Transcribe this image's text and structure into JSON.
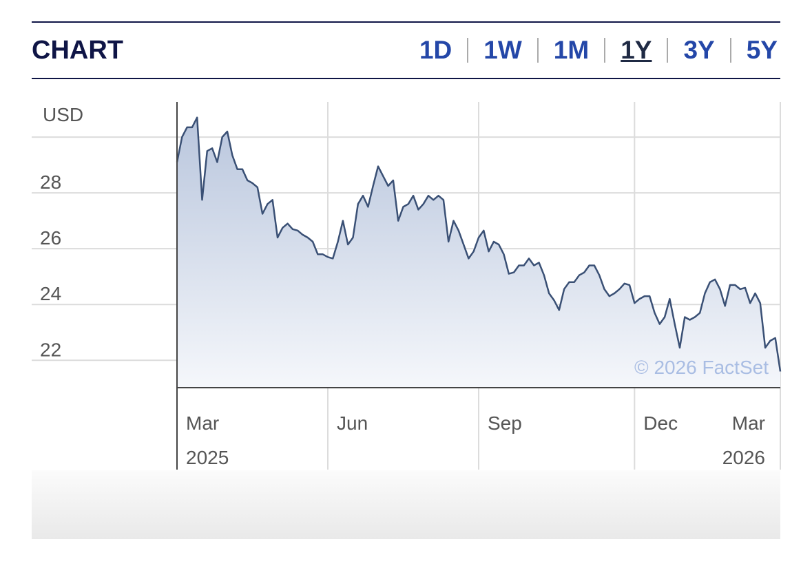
{
  "header": {
    "title": "CHART",
    "tabs": [
      "1D",
      "1W",
      "1M",
      "1Y",
      "3Y",
      "5Y"
    ],
    "active": "1Y"
  },
  "chart_data": {
    "type": "line",
    "y_label": "USD",
    "watermark": "© 2026 FactSet",
    "color": "#3a5075",
    "grid": true,
    "values": [
      29.1,
      30.0,
      30.35,
      30.35,
      30.7,
      27.75,
      29.5,
      29.6,
      29.1,
      30.0,
      30.2,
      29.35,
      28.85,
      28.85,
      28.45,
      28.35,
      28.2,
      27.25,
      27.6,
      27.75,
      26.4,
      26.75,
      26.9,
      26.7,
      26.65,
      26.5,
      26.4,
      26.25,
      25.8,
      25.8,
      25.7,
      25.65,
      26.25,
      27.0,
      26.15,
      26.4,
      27.6,
      27.9,
      27.5,
      28.25,
      28.95,
      28.6,
      28.25,
      28.45,
      27.0,
      27.5,
      27.6,
      27.9,
      27.4,
      27.6,
      27.9,
      27.75,
      27.9,
      27.75,
      26.25,
      27.0,
      26.65,
      26.15,
      25.65,
      25.9,
      26.4,
      26.65,
      25.9,
      26.25,
      26.15,
      25.8,
      25.1,
      25.15,
      25.4,
      25.4,
      25.65,
      25.4,
      25.5,
      25.05,
      24.4,
      24.15,
      23.8,
      24.55,
      24.8,
      24.8,
      25.05,
      25.15,
      25.4,
      25.4,
      25.05,
      24.55,
      24.3,
      24.4,
      24.55,
      24.75,
      24.7,
      24.05,
      24.2,
      24.3,
      24.3,
      23.7,
      23.3,
      23.55,
      24.2,
      23.3,
      22.45,
      23.55,
      23.45,
      23.55,
      23.7,
      24.4,
      24.8,
      24.9,
      24.55,
      23.95,
      24.7,
      24.7,
      24.55,
      24.6,
      24.05,
      24.4,
      24.05,
      22.45,
      22.7,
      22.8,
      21.6
    ],
    "ylim": [
      21.02,
      31.26
    ],
    "yticks": [
      22,
      24,
      26,
      28,
      {
        "value": 30,
        "label": null
      }
    ],
    "xticks": [
      {
        "value": 0,
        "label": "Mar",
        "sublabel": "2025"
      },
      {
        "value": 30,
        "label": "Jun"
      },
      {
        "value": 60,
        "label": "Sep"
      },
      {
        "value": 91,
        "label": "Dec"
      },
      {
        "value": 120,
        "label": "Mar",
        "sublabel": "2026"
      }
    ]
  }
}
